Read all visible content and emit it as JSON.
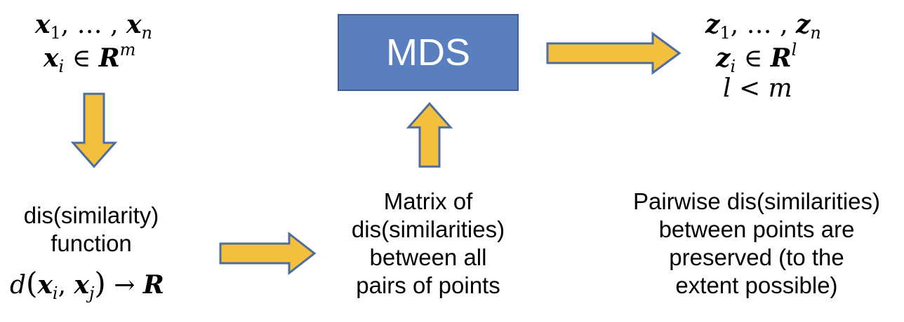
{
  "input": {
    "line1": {
      "x1": "x",
      "x1_sub": "1",
      "dots": ", … , ",
      "xn": "x",
      "xn_sub": "n"
    },
    "line2": {
      "xi": "x",
      "xi_sub": "i",
      "in": " ∈ ",
      "R": "R",
      "R_sup": "m"
    }
  },
  "mds": {
    "label": "MDS"
  },
  "output": {
    "line1": {
      "z1": "z",
      "z1_sub": "1",
      "dots": ", … , ",
      "zn": "z",
      "zn_sub": "n"
    },
    "line2": {
      "zi": "z",
      "zi_sub": "i",
      "in": " ∈ ",
      "R": "R",
      "R_sup": "l"
    },
    "line3": {
      "l": "l",
      "lt": " < ",
      "m": "m"
    }
  },
  "dissimilarity_function": {
    "line1": "dis(similarity)",
    "line2": "function",
    "formula": {
      "d": "d",
      "open": "(",
      "xi": "x",
      "xi_sub": "i",
      "comma": ", ",
      "xj": "x",
      "xj_sub": "j",
      "close": ")",
      "arrow": " → ",
      "R": "R"
    }
  },
  "matrix": {
    "lines": [
      "Matrix of",
      "dis(similarities)",
      "between all",
      "pairs of points"
    ]
  },
  "pairwise": {
    "lines": [
      "Pairwise dis(similarities)",
      "between points are",
      "preserved (to the",
      "extent possible)"
    ]
  },
  "colors": {
    "arrow_fill": "#f4bf3c",
    "arrow_stroke": "#4e6d9f",
    "mds_box_fill": "#5a7fbf",
    "mds_box_stroke": "#3d5f96"
  }
}
